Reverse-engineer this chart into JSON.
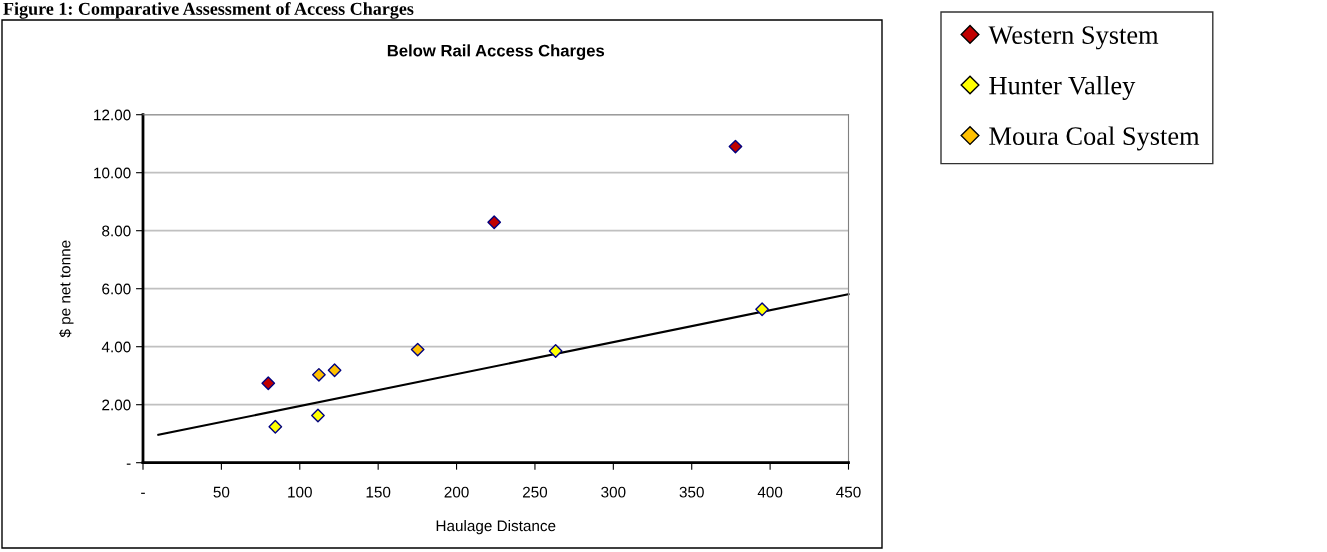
{
  "chart_data": {
    "type": "scatter",
    "title": "Below Rail Access Charges",
    "xlabel": "Haulage Distance",
    "ylabel": "$ pe net tonne",
    "annotations": [
      "Figure 1: Comparative Assessment of Access Charges"
    ],
    "series": [
      {
        "name": "Western System",
        "color": "#c00000",
        "x": [
          79.9,
          224.0,
          377.9
        ],
        "values": [
          2.74,
          8.29,
          10.9
        ]
      },
      {
        "name": "Hunter Valley",
        "color": "#ffff00",
        "x": [
          84.4,
          111.6,
          263.2,
          394.9
        ],
        "values": [
          1.24,
          1.63,
          3.85,
          5.29
        ]
      },
      {
        "name": "Moura Coal System",
        "color": "#ffc000",
        "x": [
          112.2,
          122.2,
          175.2
        ],
        "values": [
          3.03,
          3.19,
          3.9
        ]
      },
      {
        "type": "line",
        "color": "#000000",
        "x": [
          9.8,
          450
        ],
        "values": [
          0.96,
          5.81
        ],
        "marker": "none"
      }
    ],
    "marker": "diamond",
    "xlim": [
      0,
      450
    ],
    "ylim": [
      0,
      12
    ],
    "xticks": [
      {
        "value": 0,
        "label": "-"
      },
      50,
      100,
      150,
      200,
      250,
      300,
      350,
      400,
      450
    ],
    "yticks": [
      {
        "value": 0,
        "label": "-"
      },
      {
        "value": 2,
        "label": "2.00"
      },
      {
        "value": 4,
        "label": "4.00"
      },
      {
        "value": 6,
        "label": "6.00"
      },
      {
        "value": 8,
        "label": "8.00"
      },
      {
        "value": 10,
        "label": "10.00"
      },
      {
        "value": 12,
        "label": "12.00"
      }
    ],
    "grid": "y",
    "legend": "right"
  }
}
